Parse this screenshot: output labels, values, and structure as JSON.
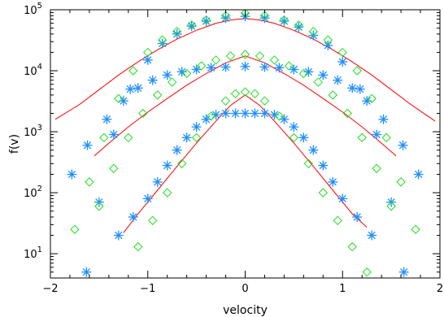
{
  "chart_data": {
    "type": "scatter",
    "xlabel": "velocity",
    "ylabel": "f(v)",
    "xlim": [
      -2,
      2
    ],
    "ylim": [
      4,
      100000
    ],
    "yscale": "log",
    "x_ticks": [
      -2,
      -1,
      0,
      1,
      2
    ],
    "y_ticks": [
      {
        "value": 10,
        "base": "10",
        "exp": "1"
      },
      {
        "value": 100,
        "base": "10",
        "exp": "2"
      },
      {
        "value": 1000,
        "base": "10",
        "exp": "3"
      },
      {
        "value": 10000,
        "base": "10",
        "exp": "4"
      },
      {
        "value": 100000,
        "base": "10",
        "exp": "5"
      }
    ],
    "grid": false,
    "colors": {
      "asterisk": "#1f8fff",
      "diamond": "#22dd22",
      "fit": "#ff0000"
    },
    "series": [
      {
        "marker": "asterisk",
        "x": [
          -1.63,
          -1.5,
          -1.35,
          -1.18,
          -1.0,
          -0.85,
          -0.7,
          -0.55,
          -0.4,
          -0.2,
          0.0,
          0.2,
          0.4,
          0.55,
          0.7,
          0.85,
          1.0,
          1.18,
          1.35,
          1.5,
          1.63
        ],
        "y": [
          5,
          70,
          900,
          5000,
          15000,
          28000,
          40000,
          54000,
          65000,
          73000,
          78000,
          73000,
          65000,
          52000,
          38000,
          26000,
          14000,
          5000,
          900,
          70,
          5
        ]
      },
      {
        "marker": "asterisk",
        "x": [
          -1.78,
          -1.62,
          -1.42,
          -1.25,
          -1.1,
          -0.95,
          -0.8,
          -0.65,
          -0.5,
          -0.35,
          -0.2,
          0.0,
          0.2,
          0.35,
          0.5,
          0.65,
          0.8,
          0.95,
          1.1,
          1.25,
          1.42,
          1.62,
          1.78
        ],
        "y": [
          200,
          600,
          1600,
          3200,
          5200,
          7000,
          8500,
          9600,
          10500,
          11200,
          11500,
          11800,
          11500,
          11200,
          10500,
          9600,
          8500,
          7000,
          5200,
          3200,
          1600,
          600,
          200
        ]
      },
      {
        "marker": "asterisk",
        "x": [
          -1.3,
          -1.15,
          -1.0,
          -0.9,
          -0.8,
          -0.7,
          -0.6,
          -0.5,
          -0.4,
          -0.3,
          -0.2,
          -0.1,
          0.0,
          0.1,
          0.2,
          0.3,
          0.4,
          0.5,
          0.6,
          0.7,
          0.8,
          0.9,
          1.0,
          1.15,
          1.3
        ],
        "y": [
          20,
          40,
          80,
          150,
          280,
          500,
          800,
          1200,
          1600,
          1900,
          2000,
          2000,
          2000,
          2000,
          2000,
          1900,
          1600,
          1200,
          800,
          500,
          280,
          150,
          80,
          40,
          20
        ]
      },
      {
        "marker": "diamond",
        "x": [
          -1.75,
          -1.6,
          -1.45,
          -1.3,
          -1.15,
          -1.0,
          -0.85,
          -0.7,
          -0.55,
          -0.4,
          -0.2,
          0.0,
          0.2,
          0.4,
          0.55,
          0.7,
          0.85,
          1.0,
          1.15,
          1.3,
          1.45,
          1.6,
          1.75
        ],
        "y": [
          25,
          150,
          800,
          3500,
          10000,
          20000,
          32000,
          44000,
          56000,
          68000,
          80000,
          88000,
          80000,
          68000,
          56000,
          44000,
          32000,
          20000,
          10000,
          3500,
          800,
          150,
          25
        ]
      },
      {
        "marker": "diamond",
        "x": [
          -1.5,
          -1.35,
          -1.2,
          -1.05,
          -0.9,
          -0.75,
          -0.6,
          -0.45,
          -0.3,
          -0.15,
          0.0,
          0.15,
          0.3,
          0.45,
          0.6,
          0.75,
          0.9,
          1.05,
          1.2,
          1.35,
          1.5
        ],
        "y": [
          60,
          250,
          800,
          2000,
          4000,
          6500,
          9000,
          12000,
          15000,
          17500,
          18500,
          17500,
          15000,
          12000,
          9000,
          6500,
          4000,
          2000,
          800,
          250,
          60
        ]
      },
      {
        "marker": "diamond",
        "x": [
          -1.1,
          -0.95,
          -0.8,
          -0.65,
          -0.5,
          -0.35,
          -0.2,
          -0.1,
          0.0,
          0.1,
          0.2,
          0.35,
          0.5,
          0.65,
          0.8,
          0.95,
          1.1,
          1.25
        ],
        "y": [
          13,
          35,
          100,
          300,
          800,
          1800,
          3200,
          4200,
          4500,
          4200,
          3200,
          1800,
          800,
          300,
          100,
          35,
          13,
          5
        ]
      }
    ],
    "fits": [
      {
        "x": [
          -1.95,
          -1.7,
          -1.5,
          -1.3,
          -1.1,
          -0.9,
          -0.7,
          -0.5,
          -0.3,
          -0.15,
          0.0,
          0.15,
          0.3,
          0.5,
          0.7,
          0.9,
          1.1,
          1.3,
          1.5,
          1.7,
          1.95
        ],
        "y": [
          1600,
          2800,
          4900,
          8500,
          14000,
          22000,
          33000,
          46000,
          60000,
          68000,
          72000,
          68000,
          60000,
          46000,
          33000,
          22000,
          14000,
          8500,
          4900,
          2800,
          1500
        ]
      },
      {
        "x": [
          -1.55,
          -1.4,
          -1.2,
          -1.0,
          -0.8,
          -0.6,
          -0.4,
          -0.2,
          0.0,
          0.2,
          0.4,
          0.6,
          0.8,
          1.0,
          1.2,
          1.4,
          1.55
        ],
        "y": [
          400,
          650,
          1200,
          2100,
          3500,
          5800,
          9000,
          13500,
          17500,
          13500,
          9000,
          5800,
          3500,
          2100,
          1200,
          650,
          400
        ]
      },
      {
        "x": [
          -1.25,
          -1.1,
          -0.9,
          -0.7,
          -0.5,
          -0.3,
          -0.15,
          0.0,
          0.15,
          0.3,
          0.5,
          0.7,
          0.9,
          1.1,
          1.25
        ],
        "y": [
          22,
          45,
          110,
          270,
          650,
          1500,
          2700,
          4000,
          2700,
          1500,
          650,
          270,
          110,
          45,
          27
        ]
      }
    ]
  }
}
